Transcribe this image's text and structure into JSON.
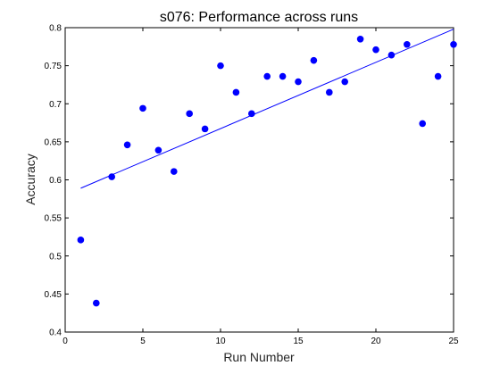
{
  "chart_data": {
    "type": "scatter",
    "title": "s076: Performance across runs",
    "xlabel": "Run Number",
    "ylabel": "Accuracy",
    "xlim": [
      0,
      25
    ],
    "ylim": [
      0.4,
      0.8
    ],
    "x_ticks": [
      "0",
      "5",
      "10",
      "15",
      "20",
      "25"
    ],
    "y_ticks": [
      "0.4",
      "0.45",
      "0.5",
      "0.55",
      "0.6",
      "0.65",
      "0.7",
      "0.75",
      "0.8"
    ],
    "grid": false,
    "series": [
      {
        "type": "scatter",
        "color": "#0000ff",
        "x": [
          1,
          2,
          3,
          4,
          5,
          6,
          7,
          8,
          9,
          10,
          11,
          12,
          13,
          14,
          15,
          16,
          17,
          18,
          19,
          20,
          21,
          22,
          23,
          24,
          25
        ],
        "y": [
          0.521,
          0.438,
          0.604,
          0.646,
          0.694,
          0.639,
          0.611,
          0.687,
          0.667,
          0.75,
          0.715,
          0.687,
          0.736,
          0.736,
          0.729,
          0.757,
          0.715,
          0.729,
          0.785,
          0.771,
          0.764,
          0.778,
          0.674,
          0.736,
          0.778
        ]
      },
      {
        "type": "line",
        "color": "#0000ff",
        "x": [
          1,
          25
        ],
        "y": [
          0.589,
          0.798
        ]
      }
    ]
  }
}
